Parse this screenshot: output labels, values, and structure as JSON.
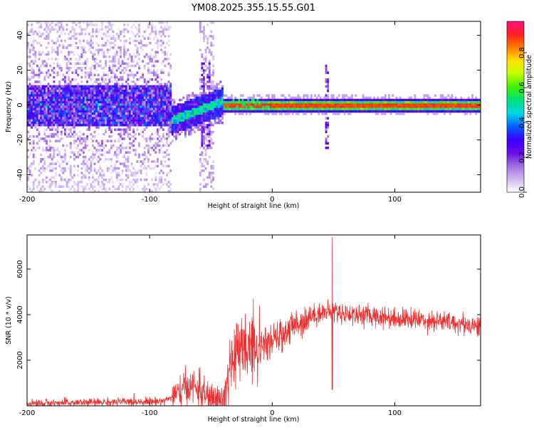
{
  "title": "YM08.2025.355.15.55.G01",
  "chart_data": [
    {
      "type": "heatmap",
      "name": "spectrogram",
      "xlabel": "Height of straight line (km)",
      "ylabel": "Frequency (Hz)",
      "xlim": [
        -200,
        170
      ],
      "ylim": [
        -50,
        48
      ],
      "xticks": [
        -200,
        -100,
        0,
        100
      ],
      "yticks": [
        -40,
        -20,
        0,
        20,
        40
      ],
      "colorbar": {
        "label": "Normalized spectral amplitude",
        "range": [
          0,
          0.98
        ],
        "ticks": [
          0.0,
          0.2,
          0.4,
          0.6,
          0.8
        ],
        "tick_labels": [
          "0.0",
          "0.2",
          "0.4",
          "0.6",
          "0.8"
        ],
        "colormap": [
          "#ffffff",
          "#d0b8f0",
          "#a070e0",
          "#6a0ae6",
          "#3a00ff",
          "#0060ff",
          "#00d8e8",
          "#00e080",
          "#40f000",
          "#c0ff00",
          "#ffe000",
          "#ff8000",
          "#ff2020",
          "#ff1080"
        ]
      },
      "signal_description": {
        "noisy_region_x": [
          -200,
          -82
        ],
        "noise_amplitude_range": [
          0.02,
          0.25
        ],
        "core_amplitude_range": [
          0.15,
          0.4
        ],
        "transition_x": [
          -82,
          -40
        ],
        "transition_freq_start_hz": -9,
        "transition_freq_end_hz": 2,
        "tonal_line_x": [
          -40,
          170
        ],
        "tonal_line_freq_hz": 0,
        "tonal_line_amplitude": 0.92,
        "tonal_line_halfwidth_hz": 4,
        "vertical_streaks_x": [
          -57,
          -52,
          44
        ],
        "pale_noise_column_x": [
          -60,
          -48
        ]
      }
    },
    {
      "type": "line",
      "name": "snr",
      "xlabel": "Height of straight line (km)",
      "ylabel": "SNR (10 * v/v)",
      "xlim": [
        -200,
        170
      ],
      "ylim": [
        0,
        7500
      ],
      "xticks": [
        -200,
        -100,
        0,
        100
      ],
      "yticks": [
        2000,
        4000,
        6000
      ],
      "color": "#ee3030",
      "series_description": {
        "profile_x": [
          -200,
          -90,
          -78,
          -68,
          -60,
          -50,
          -40,
          -35,
          -30,
          -20,
          -10,
          0,
          10,
          20,
          30,
          40,
          50,
          60,
          80,
          100,
          130,
          170
        ],
        "profile_snr": [
          100,
          200,
          450,
          900,
          700,
          250,
          300,
          1200,
          2300,
          2500,
          2600,
          2800,
          3200,
          3600,
          3900,
          4100,
          4150,
          4050,
          3950,
          3850,
          3750,
          3500
        ],
        "noise_std_by_region": [
          {
            "x": [
              -200,
              -82
            ],
            "std": 90
          },
          {
            "x": [
              -82,
              -40
            ],
            "std": 380
          },
          {
            "x": [
              -40,
              -10
            ],
            "std": 700
          },
          {
            "x": [
              -10,
              30
            ],
            "std": 350
          },
          {
            "x": [
              30,
              170
            ],
            "std": 230
          }
        ],
        "spike_max_x": 49,
        "spike_max_snr": 7400,
        "spike_min_x": 49,
        "spike_min_snr": 700
      }
    }
  ]
}
